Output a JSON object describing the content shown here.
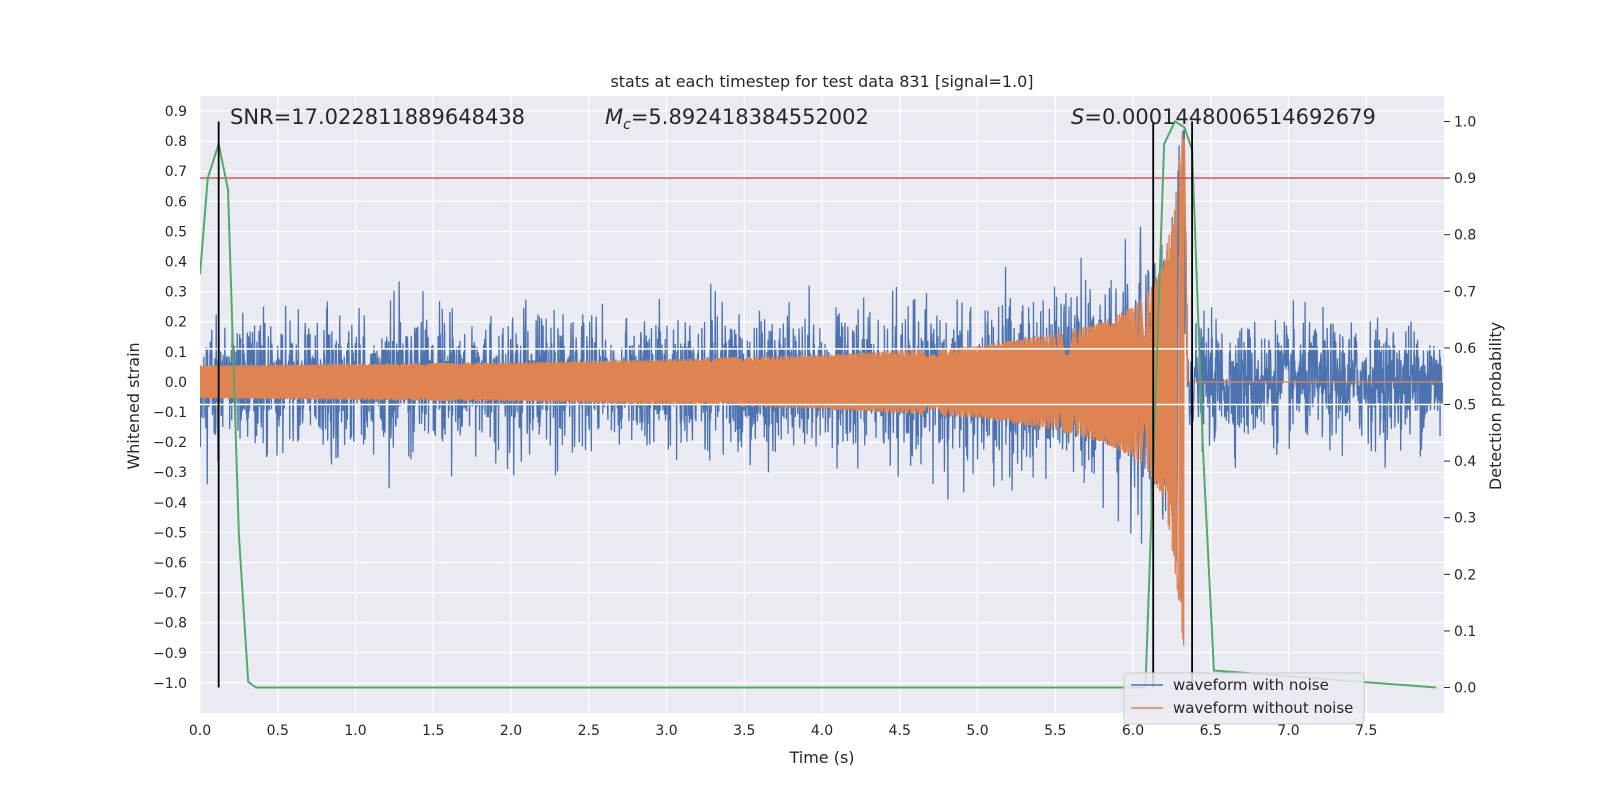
{
  "chart_data": {
    "type": "line",
    "title": "stats at each timestep for test data 831 [signal=1.0]",
    "xlabel": "Time (s)",
    "ylabel_left": "Whitened strain",
    "ylabel_right": "Detection probability",
    "xlim": [
      0.0,
      8.0
    ],
    "ylim_left": [
      -1.1,
      0.95
    ],
    "ylim_right": [
      -0.045,
      1.045
    ],
    "grid": true,
    "x_ticks": [
      "0.0",
      "0.5",
      "1.0",
      "1.5",
      "2.0",
      "2.5",
      "3.0",
      "3.5",
      "4.0",
      "4.5",
      "5.0",
      "5.5",
      "6.0",
      "6.5",
      "7.0",
      "7.5"
    ],
    "y_left_ticks": [
      "0.9",
      "0.8",
      "0.7",
      "0.6",
      "0.5",
      "0.4",
      "0.3",
      "0.2",
      "0.1",
      "0.0",
      "−0.1",
      "−0.2",
      "−0.3",
      "−0.4",
      "−0.5",
      "−0.6",
      "−0.7",
      "−0.8",
      "−0.9",
      "−1.0"
    ],
    "y_right_ticks": [
      "1.0",
      "0.9",
      "0.8",
      "0.7",
      "0.6",
      "0.5",
      "0.4",
      "0.3",
      "0.2",
      "0.1",
      "0.0"
    ],
    "annotations": {
      "snr": "SNR=17.022811889648438",
      "mc_symbol": "M",
      "mc_sub": "c",
      "mc_value": "=5.892418384552002",
      "s_symbol": "S",
      "s_value": "=0.0001448006514692679"
    },
    "series": [
      {
        "name": "waveform with noise",
        "color": "#4c72b0",
        "axis": "left",
        "summary": "noise band approx ±0.27 from 0 to 8 s, growing with chirp to ~±0.5 near 6.0 s and peaking ~0.8 / −0.9 at 6.3 s"
      },
      {
        "name": "waveform without noise",
        "color": "#dd8452",
        "axis": "left",
        "envelope": {
          "t": [
            0.0,
            1.0,
            2.0,
            3.0,
            4.0,
            5.0,
            5.5,
            5.8,
            6.0,
            6.1,
            6.2,
            6.25,
            6.3,
            6.33,
            6.35
          ],
          "amp": [
            0.055,
            0.06,
            0.065,
            0.075,
            0.09,
            0.12,
            0.16,
            0.2,
            0.25,
            0.3,
            0.4,
            0.55,
            0.75,
            0.9,
            0.0
          ]
        },
        "ringdown_end_t": 6.36
      },
      {
        "name": "detection probability",
        "color": "#55a868",
        "axis": "right",
        "x": [
          0.0,
          0.05,
          0.12,
          0.18,
          0.25,
          0.31,
          0.36,
          6.08,
          6.15,
          6.2,
          6.27,
          6.33,
          6.38,
          6.45,
          6.52,
          7.95
        ],
        "y": [
          0.73,
          0.9,
          0.96,
          0.88,
          0.27,
          0.01,
          0.0,
          0.0,
          0.55,
          0.96,
          1.0,
          0.99,
          0.95,
          0.42,
          0.03,
          0.0
        ]
      }
    ],
    "threshold_line": {
      "color": "#c44e52",
      "axis": "right",
      "value": 0.9
    },
    "white_hlines_left": [
      0.11,
      -0.075
    ],
    "vertical_markers": {
      "color": "#000000",
      "x": [
        0.12,
        6.13,
        6.38
      ]
    },
    "legend": {
      "placement": "bottom-right",
      "entries": [
        "waveform with noise",
        "waveform without noise"
      ]
    }
  }
}
